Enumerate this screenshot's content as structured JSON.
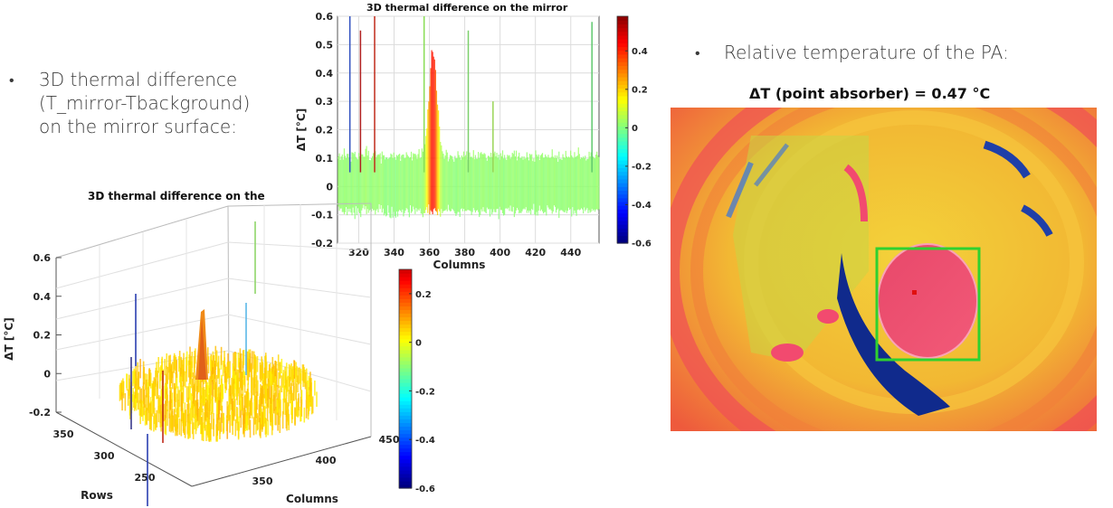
{
  "left_text": {
    "bullet": "•",
    "line1": "3D thermal difference",
    "line2": "(T_mirror-Tbackground)",
    "line3": "on the mirror surface:"
  },
  "right_text": {
    "bullet": "•",
    "line": "Relative temperature of the PA:"
  },
  "thermal_image": {
    "title": "ΔT (point absorber) = 0.47 °C",
    "box_color": "#2fd12f"
  },
  "chart_data": [
    {
      "type": "surface3d",
      "title": "3D thermal difference on the mirror",
      "view": "column-projection",
      "xlabel": "Columns",
      "ylabel": "ΔT [°C]",
      "x_ticks": [
        "320",
        "340",
        "360",
        "380",
        "400",
        "420",
        "440"
      ],
      "y_ticks": [
        "0.6",
        "0.5",
        "0.4",
        "0.3",
        "0.2",
        "0.1",
        "0",
        "-0.1",
        "-0.2"
      ],
      "xlim": [
        308,
        456
      ],
      "ylim": [
        -0.2,
        0.6
      ],
      "peak": {
        "column": 362,
        "value": 0.47
      },
      "colorbar": {
        "ticks": [
          "0.4",
          "0.2",
          "0",
          "-0.2",
          "-0.4",
          "-0.6"
        ],
        "range": [
          -0.6,
          0.58
        ],
        "colormap": "jet"
      }
    },
    {
      "type": "surface3d",
      "title": "3D thermal difference on the",
      "view": "perspective",
      "zlabel": "ΔT [°C]",
      "xlabel": "Columns",
      "ylabel": "Rows",
      "z_ticks": [
        "0.6",
        "0.4",
        "0.2",
        "0",
        "-0.2"
      ],
      "rows_ticks": [
        "350",
        "300",
        "250"
      ],
      "columns_ticks": [
        "350",
        "400",
        "450"
      ],
      "zlim": [
        -0.2,
        0.6
      ],
      "peak": {
        "value": 0.47
      },
      "colorbar": {
        "ticks": [
          "0.2",
          "0",
          "-0.2",
          "-0.4",
          "-0.6"
        ],
        "range": [
          -0.6,
          0.3
        ],
        "colormap": "jet"
      }
    }
  ]
}
